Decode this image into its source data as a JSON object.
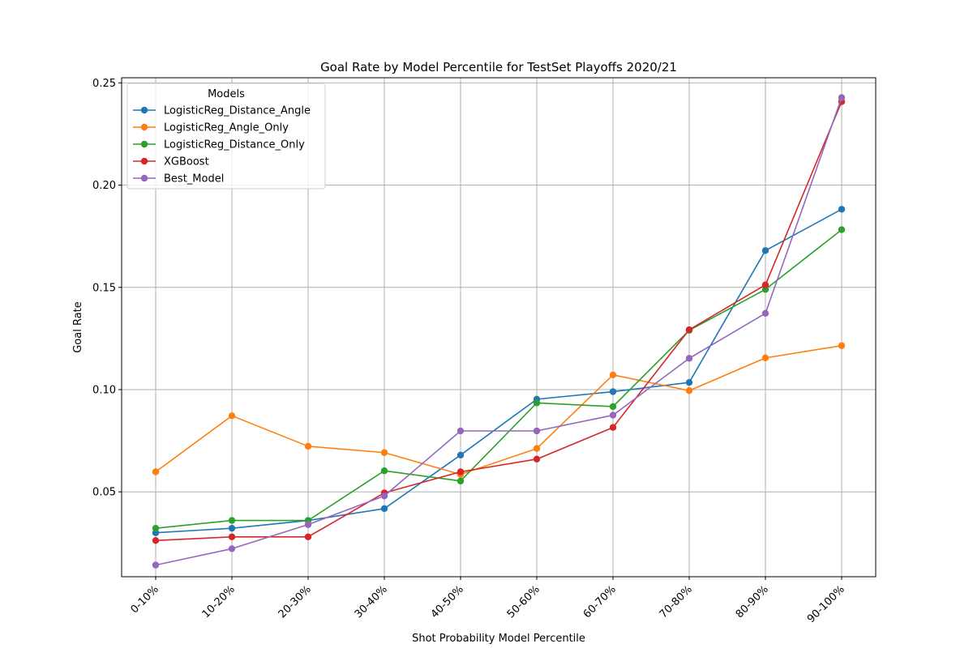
{
  "chart_data": {
    "type": "line",
    "title": "Goal Rate by Model Percentile for TestSet Playoffs 2020/21",
    "xlabel": "Shot Probability Model Percentile",
    "ylabel": "Goal Rate",
    "categories": [
      "0-10%",
      "10-20%",
      "20-30%",
      "30-40%",
      "40-50%",
      "50-60%",
      "60-70%",
      "70-80%",
      "80-90%",
      "90-100%"
    ],
    "ylim": [
      0.0085,
      0.2525
    ],
    "yticks": [
      0.05,
      0.1,
      0.15,
      0.2,
      0.25
    ],
    "ytick_labels": [
      "0.05",
      "0.10",
      "0.15",
      "0.20",
      "0.25"
    ],
    "grid": true,
    "marker": "circle",
    "legend": {
      "title": "Models",
      "position": "top-left"
    },
    "series": [
      {
        "name": "LogisticReg_Distance_Angle",
        "color": "#1f77b4",
        "values": [
          0.03,
          0.0322,
          0.036,
          0.0418,
          0.068,
          0.0953,
          0.099,
          0.1035,
          0.168,
          0.1882
        ]
      },
      {
        "name": "LogisticReg_Angle_Only",
        "color": "#ff7f0e",
        "values": [
          0.0598,
          0.0872,
          0.0723,
          0.0692,
          0.0585,
          0.0712,
          0.1072,
          0.0995,
          0.1155,
          0.1215
        ]
      },
      {
        "name": "LogisticReg_Distance_Only",
        "color": "#2ca02c",
        "values": [
          0.0322,
          0.036,
          0.036,
          0.0603,
          0.0553,
          0.0935,
          0.0917,
          0.129,
          0.149,
          0.1782
        ]
      },
      {
        "name": "XGBoost",
        "color": "#d62728",
        "values": [
          0.0262,
          0.028,
          0.028,
          0.0495,
          0.0598,
          0.066,
          0.0815,
          0.1293,
          0.1512,
          0.2408
        ]
      },
      {
        "name": "Best_Model",
        "color": "#9467bd",
        "values": [
          0.0142,
          0.0222,
          0.034,
          0.048,
          0.0798,
          0.0798,
          0.0875,
          0.1153,
          0.1373,
          0.2428
        ]
      }
    ]
  }
}
